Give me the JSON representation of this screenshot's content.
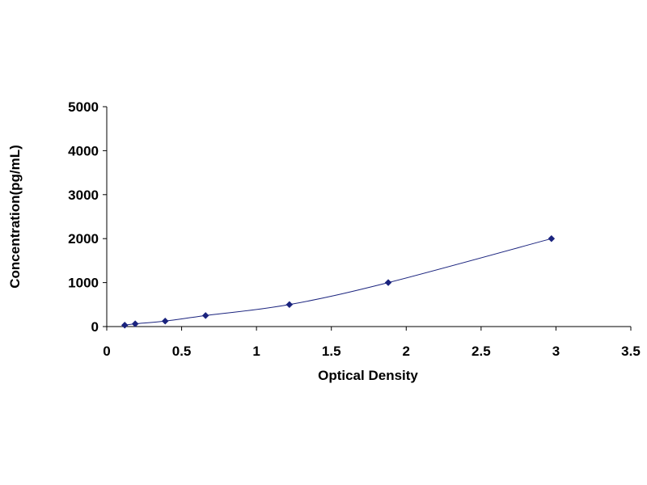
{
  "chart_data": {
    "type": "scatter",
    "xlabel": "Optical Density",
    "ylabel": "Concentration(pg/mL)",
    "xlim": [
      0,
      3.5
    ],
    "ylim": [
      0,
      5000
    ],
    "x_ticks": [
      "0",
      "0.5",
      "1",
      "1.5",
      "2",
      "2.5",
      "3",
      "3.5"
    ],
    "y_ticks": [
      "0",
      "1000",
      "2000",
      "3000",
      "4000",
      "5000"
    ],
    "grid": false,
    "trendline": "smooth curve through points",
    "series": [
      {
        "color": "#1a237e",
        "marker": "diamond",
        "x": [
          0.12,
          0.19,
          0.39,
          0.66,
          1.22,
          1.88,
          2.97
        ],
        "y": [
          31.25,
          62.5,
          125,
          250,
          500,
          1000,
          2000
        ]
      }
    ]
  }
}
